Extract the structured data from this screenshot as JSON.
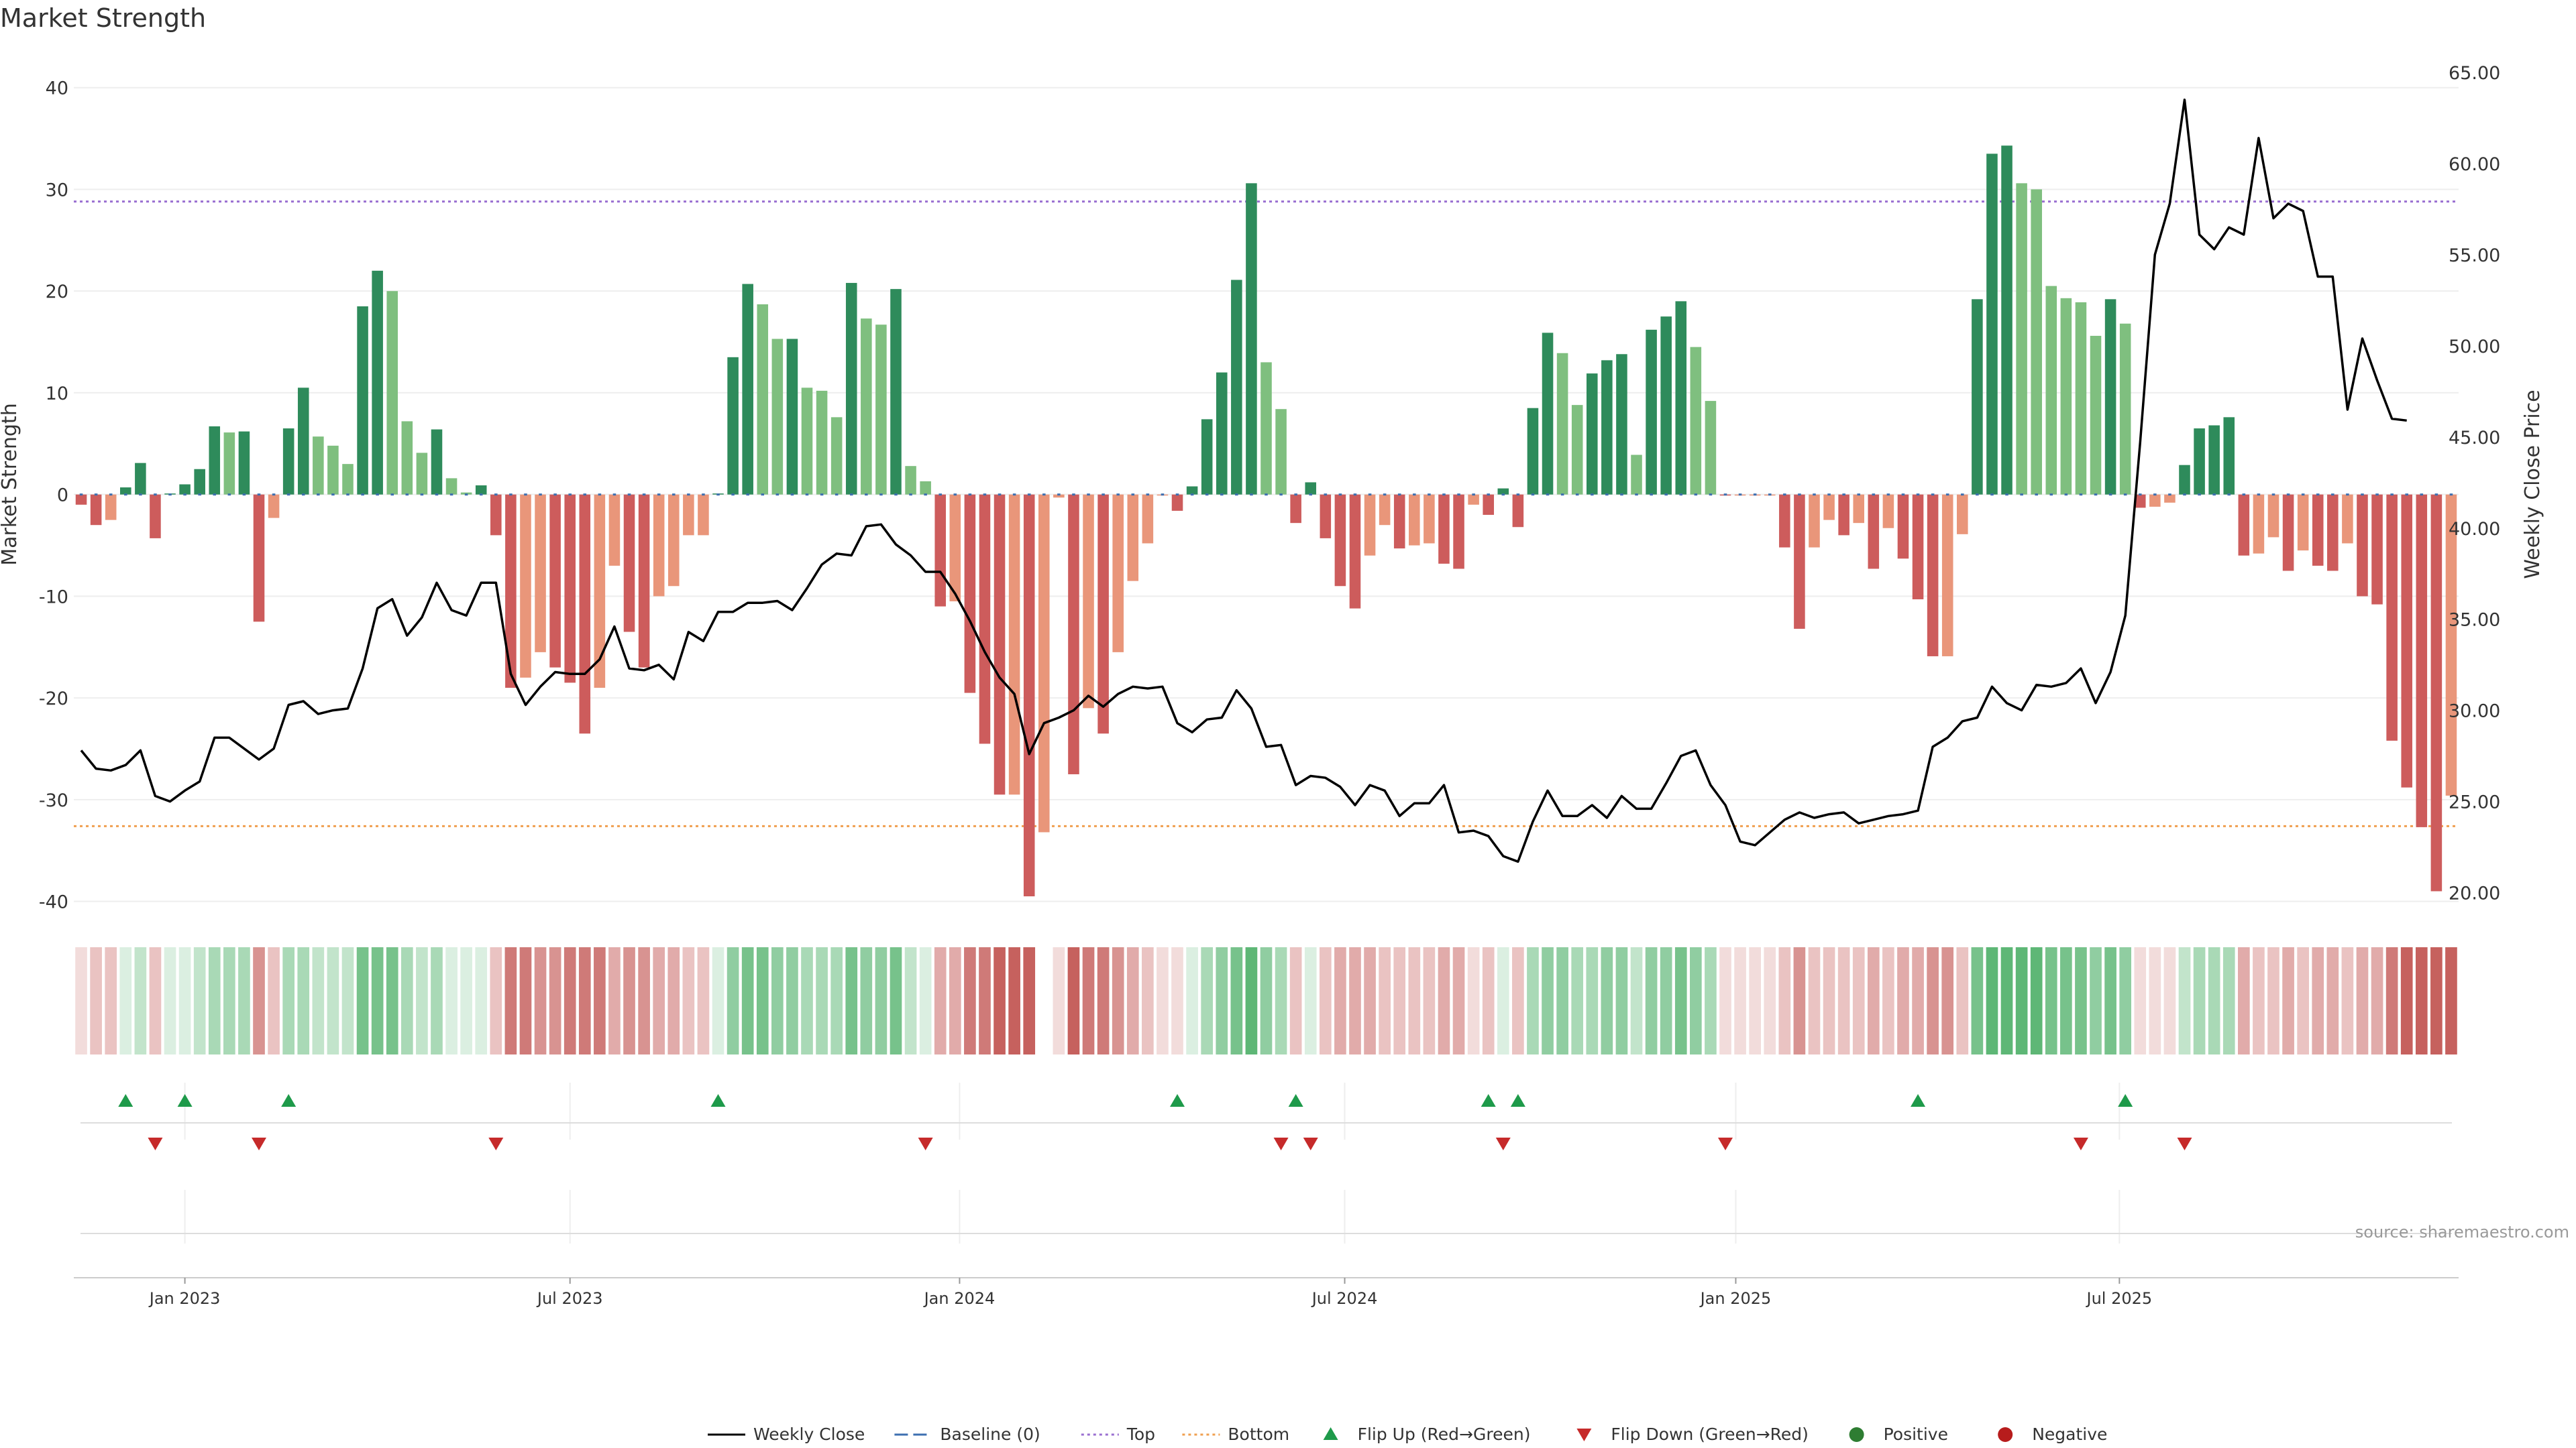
{
  "chart_data": {
    "type": "bar",
    "title": "Market Strength",
    "ylabel_left": "Market Strength",
    "ylabel_right": "Weekly Close Price",
    "ylim_left": [
      -42,
      44
    ],
    "ylim_right": [
      18.4,
      66.4
    ],
    "yticks_left": [
      40,
      30,
      20,
      10,
      0,
      -10,
      -20,
      -30,
      -40
    ],
    "yticks_right": [
      "65.00",
      "60.00",
      "55.00",
      "50.00",
      "45.00",
      "40.00",
      "35.00",
      "30.00",
      "25.00",
      "20.00"
    ],
    "x_ticks": [
      {
        "label": "Jan 2023",
        "week": 7
      },
      {
        "label": "Jul 2023",
        "week": 33
      },
      {
        "label": "Jan 2024",
        "week": 59.3
      },
      {
        "label": "Jul 2024",
        "week": 85.3
      },
      {
        "label": "Jan 2025",
        "week": 111.7
      },
      {
        "label": "Jul 2025",
        "week": 137.6
      }
    ],
    "reference_lines": {
      "top": 28.8,
      "bottom": -32.6,
      "baseline": 0
    },
    "strength": [
      -1,
      -3,
      -2.5,
      0.7,
      3.1,
      -4.3,
      0.1,
      1,
      2.5,
      6.7,
      6.1,
      6.2,
      -12.5,
      -2.3,
      6.5,
      10.5,
      5.7,
      4.8,
      3,
      18.5,
      22,
      20,
      7.2,
      4.1,
      6.4,
      1.6,
      0.2,
      0.9,
      -4,
      -19,
      -18,
      -15.5,
      -17,
      -18.5,
      -23.5,
      -19,
      -7,
      -13.5,
      -17,
      -10,
      -9,
      -4,
      -4,
      0.1,
      13.5,
      20.7,
      18.7,
      15.3,
      15.3,
      10.5,
      10.2,
      7.6,
      20.8,
      17.3,
      16.7,
      20.2,
      2.8,
      1.3,
      -11,
      -10.5,
      -19.5,
      -24.5,
      -29.5,
      -29.5,
      -39.5,
      -33.2,
      -0.3,
      -27.5,
      -21,
      -23.5,
      -15.5,
      -8.5,
      -4.8,
      -0.1,
      -1.6,
      0.8,
      7.4,
      12,
      21.1,
      30.6,
      13,
      8.4,
      -2.8,
      1.2,
      -4.3,
      -9,
      -11.2,
      -6,
      -3,
      -5.3,
      -5,
      -4.8,
      -6.8,
      -7.3,
      -1,
      -2,
      0.6,
      -3.2,
      8.5,
      15.9,
      13.9,
      8.8,
      11.9,
      13.2,
      13.8,
      3.9,
      16.2,
      17.5,
      19,
      14.5,
      9.2,
      -0.1,
      -0.1,
      -0.1,
      -0.1,
      -5.2,
      -13.2,
      -5.2,
      -2.5,
      -4,
      -2.8,
      -7.3,
      -3.3,
      -6.3,
      -10.3,
      -15.9,
      -15.9,
      -3.9,
      19.2,
      33.5,
      34.3,
      30.6,
      30,
      20.5,
      19.3,
      18.9,
      15.6,
      19.2,
      16.8,
      -1.3,
      -1.2,
      -0.8,
      2.9,
      6.5,
      6.8,
      7.6,
      -6,
      -5.8,
      -4.2,
      -7.5,
      -5.5,
      -7,
      -7.5,
      -4.8,
      -10,
      -10.8,
      -24.2,
      -28.8,
      -32.7,
      -39,
      -29.6
    ],
    "weekly_close": [
      27.8,
      26.8,
      26.7,
      27.0,
      27.8,
      25.3,
      25.0,
      25.6,
      26.1,
      28.5,
      28.5,
      27.9,
      27.3,
      27.9,
      30.3,
      30.5,
      29.8,
      30.0,
      30.1,
      32.3,
      35.6,
      36.1,
      34.1,
      35.1,
      37.0,
      35.5,
      35.2,
      37.0,
      37.0,
      32.0,
      30.3,
      31.3,
      32.1,
      32.0,
      32.0,
      32.8,
      34.6,
      32.3,
      32.2,
      32.5,
      31.7,
      34.3,
      33.8,
      35.4,
      35.4,
      35.9,
      35.9,
      36.0,
      35.5,
      36.7,
      38.0,
      38.6,
      38.5,
      40.1,
      40.2,
      39.1,
      38.5,
      37.6,
      37.6,
      36.4,
      34.9,
      33.2,
      31.8,
      30.9,
      27.6,
      29.3,
      29.6,
      30.0,
      30.8,
      30.2,
      30.9,
      31.3,
      31.2,
      31.3,
      29.3,
      28.8,
      29.5,
      29.6,
      31.1,
      30.1,
      28.0,
      28.1,
      25.9,
      26.4,
      26.3,
      25.8,
      24.8,
      25.9,
      25.6,
      24.2,
      24.9,
      24.9,
      25.9,
      23.3,
      23.4,
      23.1,
      22.0,
      21.7,
      23.9,
      25.6,
      24.2,
      24.2,
      24.8,
      24.1,
      25.3,
      24.6,
      24.6,
      26.0,
      27.5,
      27.8,
      25.9,
      24.8,
      22.8,
      22.6,
      23.3,
      24.0,
      24.4,
      24.1,
      24.3,
      24.4,
      23.8,
      24.0,
      24.2,
      24.3,
      24.5,
      28.0,
      28.5,
      29.4,
      29.6,
      31.3,
      30.4,
      30.0,
      31.4,
      31.3,
      31.5,
      32.3,
      30.4,
      32.1,
      35.2,
      44.7,
      55.0,
      57.8,
      63.5,
      56.1,
      55.3,
      56.5,
      56.1,
      61.4,
      57.0,
      57.8,
      57.4,
      53.8,
      53.8,
      46.5,
      50.4,
      48.1,
      46.0,
      45.9
    ],
    "heat_row": {
      "nan_index": 65,
      "shade_bounds": [
        2,
        6,
        12,
        18,
        25
      ]
    },
    "flips": {
      "up": [
        3,
        7,
        14,
        43,
        74,
        82,
        95,
        97,
        124,
        138
      ],
      "down": [
        5,
        12,
        28,
        57,
        81,
        83,
        96,
        111,
        135,
        142
      ]
    },
    "source": "source: sharemaestro.com",
    "legend": [
      {
        "label": "Weekly Close",
        "type": "line",
        "color": "#000000"
      },
      {
        "label": "Baseline (0)",
        "type": "dash",
        "color": "#3d6fb0"
      },
      {
        "label": "Top",
        "type": "dot",
        "color": "#9a6fd1"
      },
      {
        "label": "Bottom",
        "type": "dot",
        "color": "#f0a050"
      },
      {
        "label": "Flip Up (Red→Green)",
        "type": "triangle-up",
        "color": "#1e9a4a"
      },
      {
        "label": "Flip Down (Green→Red)",
        "type": "triangle-down",
        "color": "#c62a2a"
      },
      {
        "label": "Positive",
        "type": "circle",
        "color": "#2e7d32"
      },
      {
        "label": "Negative",
        "type": "circle",
        "color": "#b71c1c"
      }
    ],
    "colors": {
      "pos_strong": "#2e8b5b",
      "pos_light": "#7fbf7f",
      "neg_strong": "#cd5c5c",
      "neg_light": "#e9967a",
      "close_line": "#000000",
      "top_line": "#9a6fd1",
      "bottom_line": "#f0a050",
      "baseline": "#3d6fb0",
      "heat_green": "#4caf67",
      "heat_red": "#c0504d"
    }
  }
}
